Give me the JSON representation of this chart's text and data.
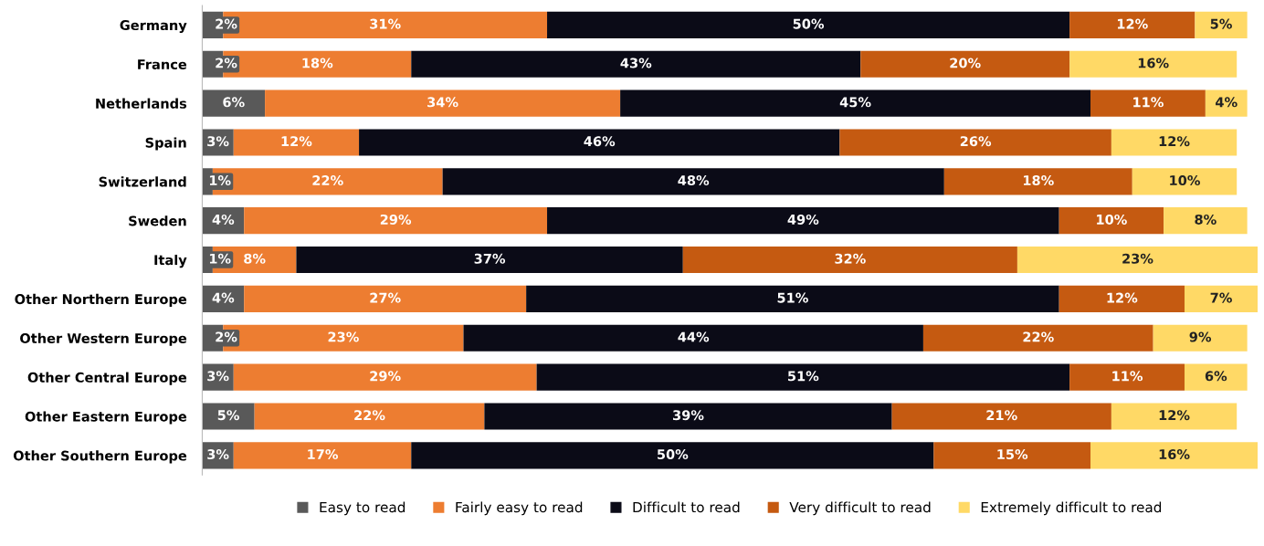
{
  "chart_data": {
    "type": "bar",
    "orientation": "horizontal",
    "stacked": true,
    "legend": "bottom",
    "grid": false,
    "tick_labels": "y",
    "categories": [
      "Germany",
      "France",
      "Netherlands",
      "Spain",
      "Switzerland",
      "Sweden",
      "Italy",
      "Other Northern Europe",
      "Other Western Europe",
      "Other Central Europe",
      "Other Eastern Europe",
      "Other Southern Europe"
    ],
    "series": [
      {
        "name": "Easy to read",
        "color": "#595959",
        "values": [
          2,
          2,
          6,
          3,
          1,
          4,
          1,
          4,
          2,
          3,
          5,
          3
        ],
        "value_labels": [
          "2%",
          "2%",
          "6%",
          "3%",
          "1%",
          "4%",
          "1%",
          "4%",
          "2%",
          "3%",
          "5%",
          "3%"
        ]
      },
      {
        "name": "Fairly easy to read",
        "color": "#ed7d31",
        "values": [
          31,
          18,
          34,
          12,
          22,
          29,
          8,
          27,
          23,
          29,
          22,
          17
        ],
        "value_labels": [
          "31%",
          "18%",
          "34%",
          "12%",
          "22%",
          "29%",
          "8%",
          "27%",
          "23%",
          "29%",
          "22%",
          "17%"
        ]
      },
      {
        "name": "Difficult to read",
        "color": "#0b0b17",
        "values": [
          50,
          43,
          45,
          46,
          48,
          49,
          37,
          51,
          44,
          51,
          39,
          50
        ],
        "value_labels": [
          "50%",
          "43%",
          "45%",
          "46%",
          "48%",
          "49%",
          "37%",
          "51%",
          "44%",
          "51%",
          "39%",
          "50%"
        ]
      },
      {
        "name": "Very difficult to read",
        "color": "#c55a11",
        "values": [
          12,
          20,
          11,
          26,
          18,
          10,
          32,
          12,
          22,
          11,
          21,
          15
        ],
        "value_labels": [
          "12%",
          "20%",
          "11%",
          "26%",
          "18%",
          "10%",
          "32%",
          "12%",
          "22%",
          "11%",
          "21%",
          "15%"
        ]
      },
      {
        "name": "Extremely difficult to read",
        "color": "#ffd966",
        "values": [
          5,
          16,
          4,
          12,
          10,
          8,
          23,
          7,
          9,
          6,
          12,
          16
        ],
        "value_labels": [
          "5%",
          "16%",
          "4%",
          "12%",
          "10%",
          "8%",
          "23%",
          "7%",
          "9%",
          "6%",
          "12%",
          "16%"
        ]
      }
    ]
  }
}
